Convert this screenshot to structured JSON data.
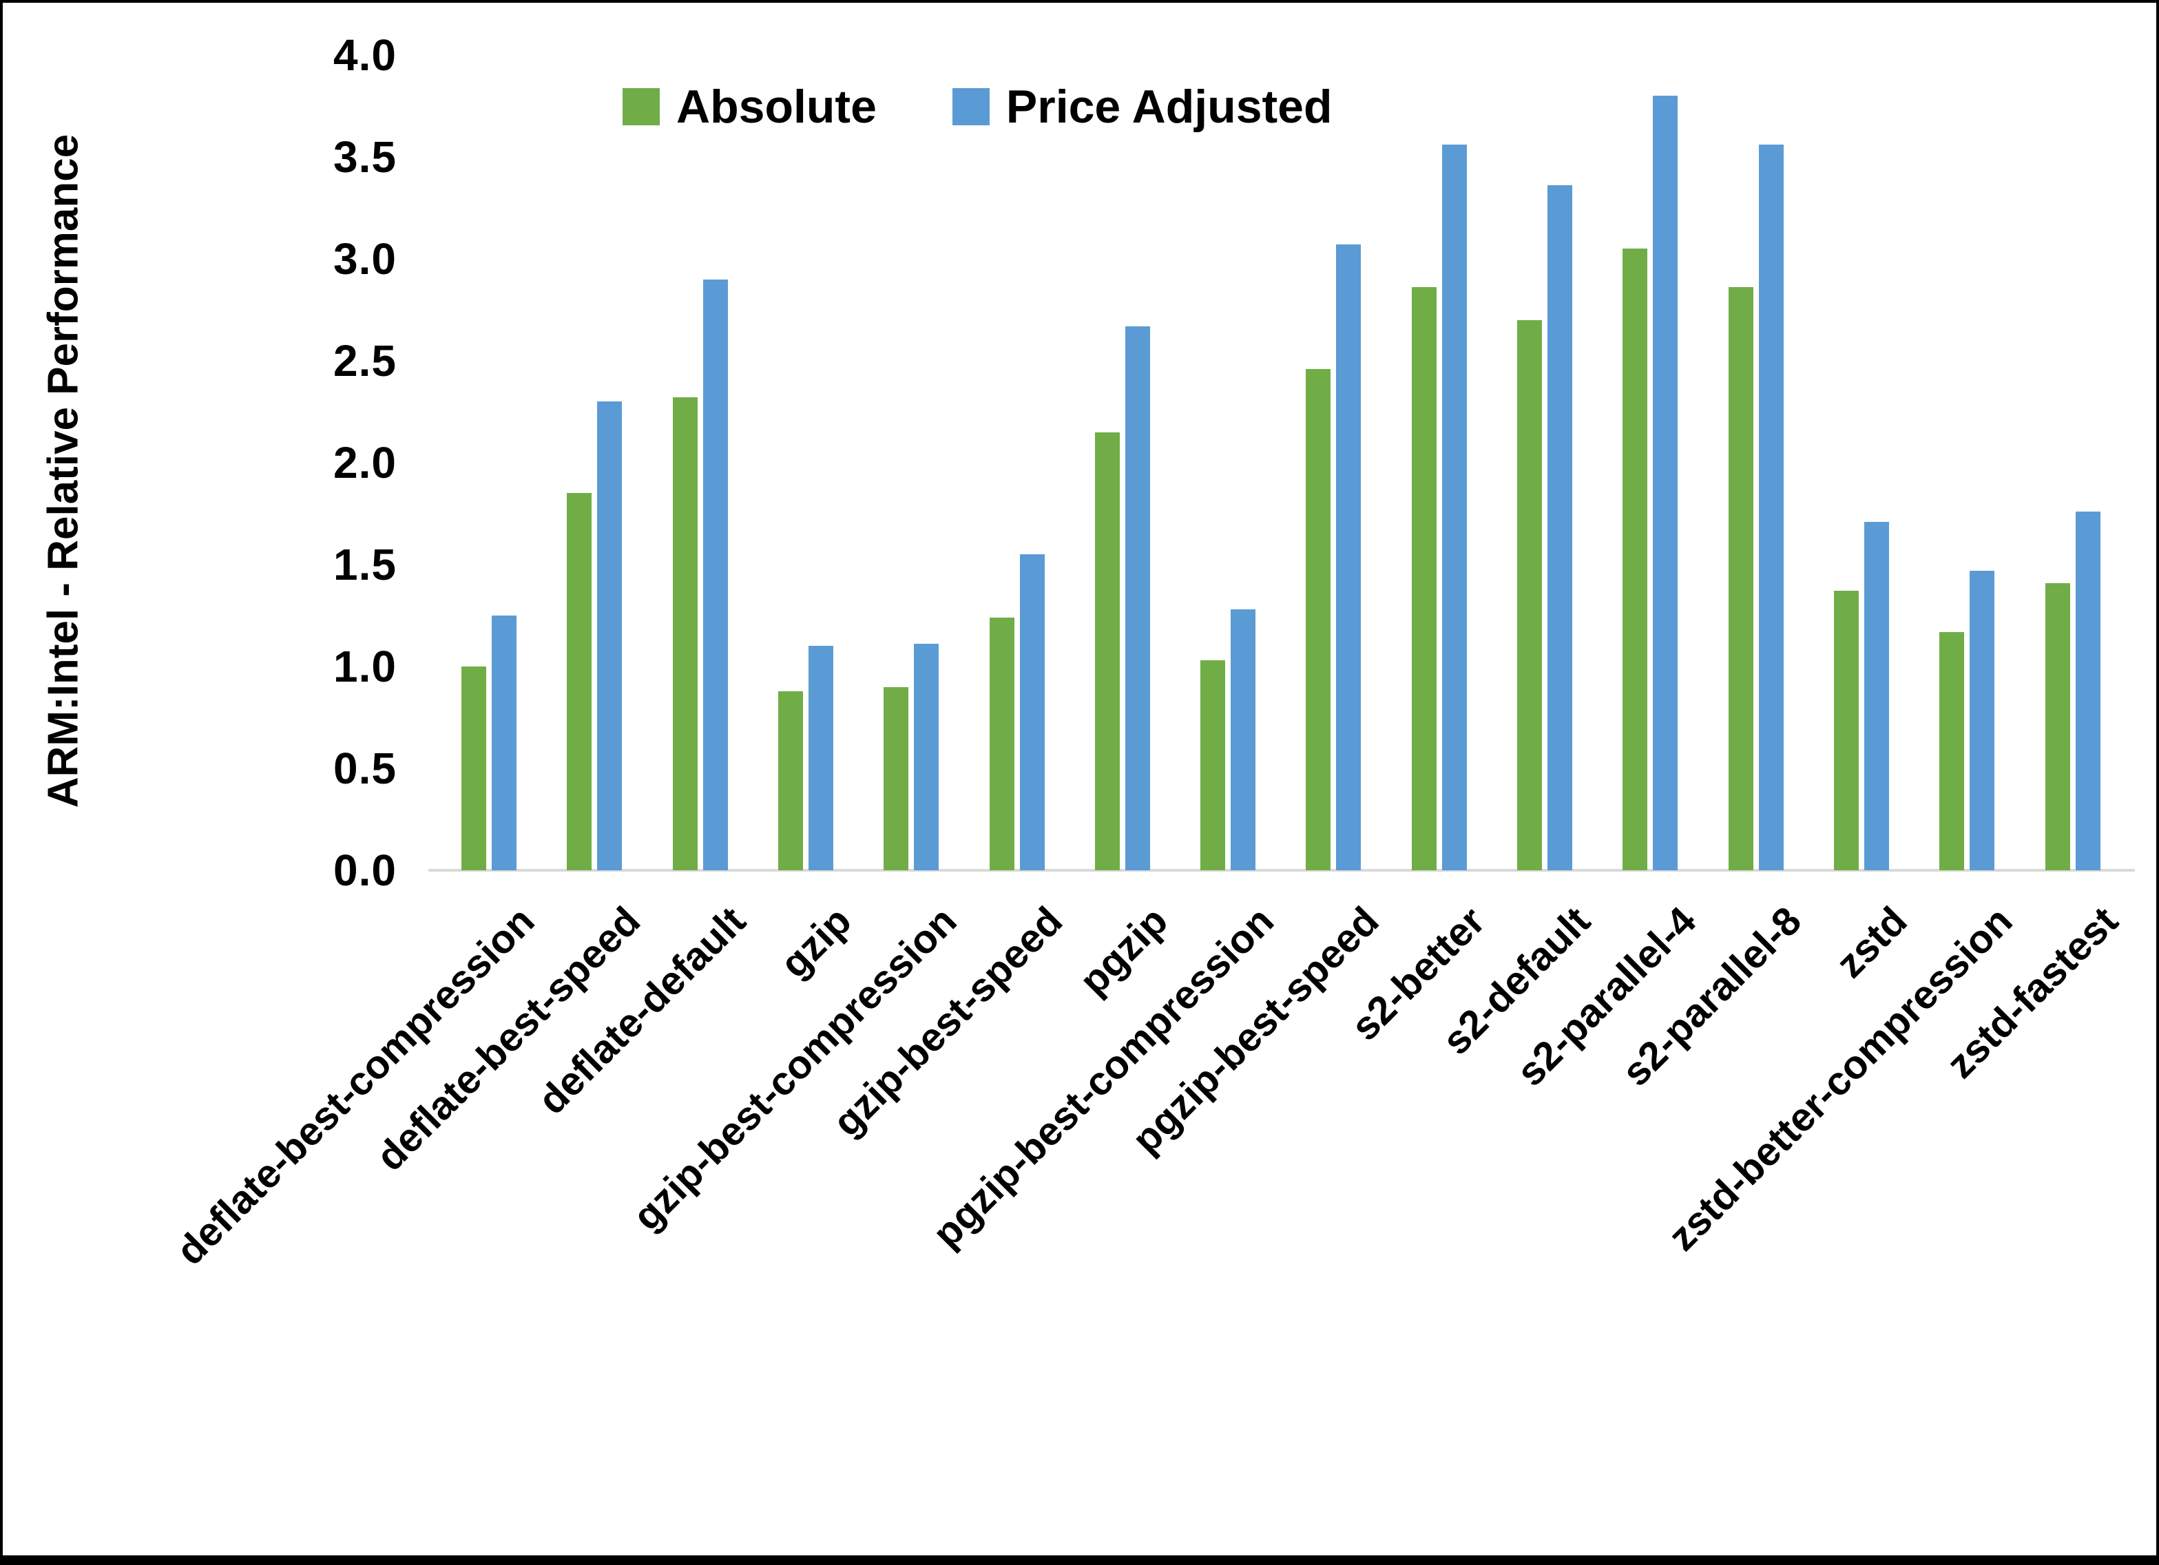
{
  "y_axis": {
    "title": "ARM:Intel - Relative Performance",
    "tick_labels": [
      "0.0",
      "0.5",
      "1.0",
      "1.5",
      "2.0",
      "2.5",
      "3.0",
      "3.5",
      "4.0"
    ]
  },
  "legend": {
    "items": [
      {
        "label": "Absolute",
        "color": "#70AD47"
      },
      {
        "label": "Price Adjusted",
        "color": "#5B9BD5"
      }
    ]
  },
  "colors": {
    "background": "#ffffff",
    "border": "#000000",
    "axis_line": "#d9d9d9",
    "text": "#000000",
    "absolute_green": "#70AD47",
    "price_adjusted_blue": "#5B9BD5"
  },
  "chart_data": {
    "type": "bar",
    "title": "",
    "xlabel": "",
    "ylabel": "ARM:Intel - Relative Performance",
    "ylim": [
      0.0,
      4.0
    ],
    "ytick_step": 0.5,
    "grid": false,
    "legend_position": "top-center",
    "categories": [
      "deflate-best-compression",
      "deflate-best-speed",
      "deflate-default",
      "gzip",
      "gzip-best-compression",
      "gzip-best-speed",
      "pgzip",
      "pgzip-best-compression",
      "pgzip-best-speed",
      "s2-better",
      "s2-default",
      "s2-parallel-4",
      "s2-parallel-8",
      "zstd",
      "zstd-better-compression",
      "zstd-fastest"
    ],
    "series": [
      {
        "name": "Absolute",
        "color": "#70AD47",
        "values": [
          1.0,
          1.85,
          2.32,
          0.88,
          0.9,
          1.24,
          2.15,
          1.03,
          2.46,
          2.86,
          2.7,
          3.05,
          2.86,
          1.37,
          1.17,
          1.41
        ]
      },
      {
        "name": "Price Adjusted",
        "color": "#5B9BD5",
        "values": [
          1.25,
          2.3,
          2.9,
          1.1,
          1.11,
          1.55,
          2.67,
          1.28,
          3.07,
          3.56,
          3.36,
          3.8,
          3.56,
          1.71,
          1.47,
          1.76
        ]
      }
    ]
  }
}
